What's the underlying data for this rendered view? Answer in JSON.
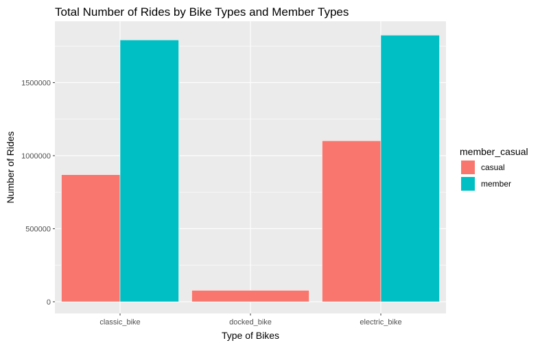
{
  "chart_data": {
    "type": "bar",
    "title": "Total Number of Rides by Bike Types and Member Types",
    "xlabel": "Type of Bikes",
    "ylabel": "Number of Rides",
    "categories": [
      "classic_bike",
      "docked_bike",
      "electric_bike"
    ],
    "series": [
      {
        "name": "casual",
        "color": "#F8766D",
        "values": [
          870000,
          78000,
          1102000
        ]
      },
      {
        "name": "member",
        "color": "#00BFC4",
        "values": [
          1792000,
          null,
          1825000
        ]
      }
    ],
    "ylim": [
      -80000,
      1920000
    ],
    "yticks": [
      0,
      500000,
      1000000,
      1500000
    ],
    "ytick_labels": [
      "0",
      "500000",
      "1000000",
      "1500000"
    ],
    "legend": {
      "title": "member_casual",
      "position": "right"
    },
    "grid": true,
    "panel_background": "#EBEBEB"
  }
}
